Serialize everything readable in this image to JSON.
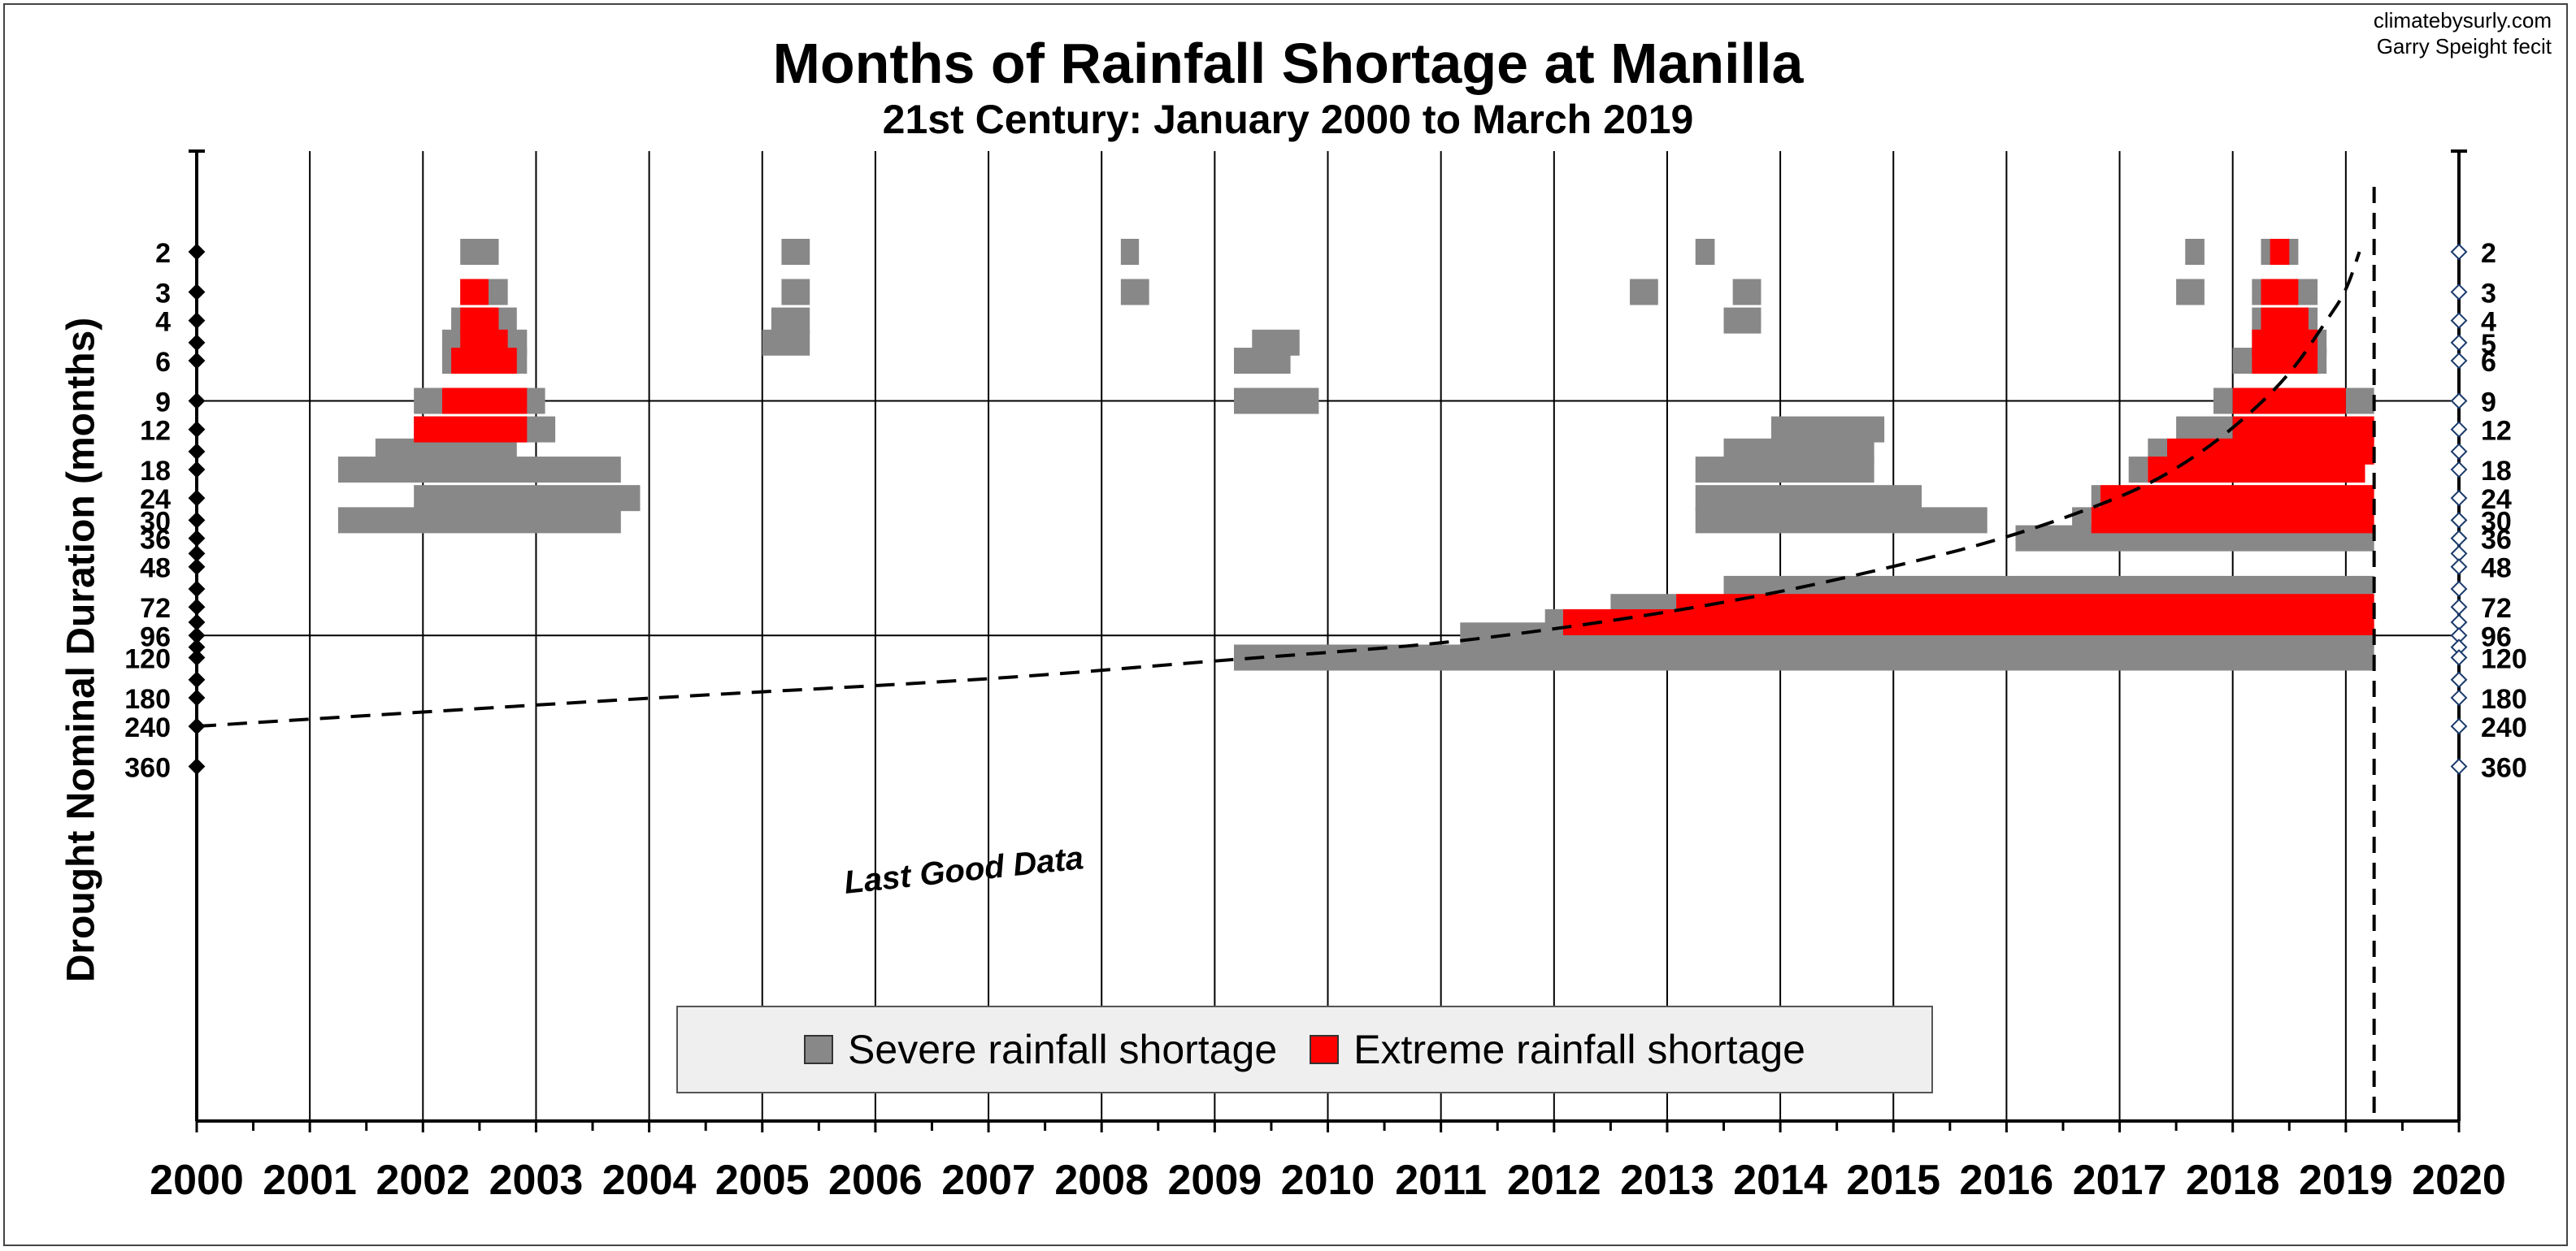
{
  "title": "Months of Rainfall Shortage at Manilla",
  "subtitle": "21st Century: January 2000 to March 2019",
  "credit_line1": "climatebysurly.com",
  "credit_line2": "Garry Speight fecit",
  "colors": {
    "severe": "#888888",
    "extreme": "#ff0000"
  },
  "chart_data": {
    "type": "bar",
    "orientation": "horizontal-range",
    "x_axis": {
      "min": 2000,
      "max": 2020,
      "ticks": [
        2000,
        2001,
        2002,
        2003,
        2004,
        2005,
        2006,
        2007,
        2008,
        2009,
        2010,
        2011,
        2012,
        2013,
        2014,
        2015,
        2016,
        2017,
        2018,
        2019,
        2020
      ]
    },
    "y_axis": {
      "label": "Drought Nominal Duration (months)",
      "scale": "log",
      "tick_labels": [
        2,
        3,
        4,
        5,
        6,
        9,
        12,
        18,
        24,
        30,
        36,
        48,
        72,
        96,
        120,
        180,
        240,
        360
      ],
      "left_labels": [
        "2",
        "3",
        "4",
        "",
        "6",
        "9",
        "12",
        "18",
        "24",
        "30",
        "36",
        "48",
        "72",
        "96",
        "120",
        "180",
        "240",
        "360"
      ],
      "right_labels": [
        "2",
        "3",
        "4",
        "5",
        "6",
        "9",
        "12",
        "18",
        "24",
        "30",
        "36",
        "48",
        "72",
        "96",
        "120",
        "180",
        "240",
        "360"
      ],
      "left_marker_values": [
        2,
        3,
        4,
        5,
        6,
        9,
        12,
        15,
        18,
        24,
        30,
        36,
        42,
        48,
        60,
        72,
        84,
        96,
        108,
        120,
        150,
        180,
        240,
        360
      ],
      "right_marker_values": [
        2,
        3,
        4,
        5,
        6,
        9,
        12,
        15,
        18,
        24,
        30,
        36,
        42,
        48,
        60,
        72,
        84,
        96,
        108,
        120,
        150,
        180,
        240,
        360
      ],
      "gridlines_at": [
        9,
        96
      ]
    },
    "legend": [
      {
        "name": "Severe rainfall shortage",
        "color": "#888888"
      },
      {
        "name": "Extreme rainfall shortage",
        "color": "#ff0000"
      }
    ],
    "legend_position": "bottom-center",
    "series": [
      {
        "name": "Severe rainfall shortage",
        "bars": [
          {
            "duration": 2,
            "start": 2002.33,
            "end": 2002.67
          },
          {
            "duration": 3,
            "start": 2002.33,
            "end": 2002.75
          },
          {
            "duration": 4,
            "start": 2002.25,
            "end": 2002.83
          },
          {
            "duration": 5,
            "start": 2002.17,
            "end": 2002.92
          },
          {
            "duration": 6,
            "start": 2002.17,
            "end": 2002.92
          },
          {
            "duration": 9,
            "start": 2001.92,
            "end": 2003.08
          },
          {
            "duration": 12,
            "start": 2001.92,
            "end": 2003.17
          },
          {
            "duration": 15,
            "start": 2001.58,
            "end": 2002.83
          },
          {
            "duration": 18,
            "start": 2001.25,
            "end": 2003.75
          },
          {
            "duration": 24,
            "start": 2001.92,
            "end": 2003.92
          },
          {
            "duration": 30,
            "start": 2001.25,
            "end": 2003.75
          },
          {
            "duration": 2,
            "start": 2005.17,
            "end": 2005.42
          },
          {
            "duration": 3,
            "start": 2005.17,
            "end": 2005.42
          },
          {
            "duration": 4,
            "start": 2005.08,
            "end": 2005.42
          },
          {
            "duration": 5,
            "start": 2005.0,
            "end": 2005.42
          },
          {
            "duration": 2,
            "start": 2008.17,
            "end": 2008.33
          },
          {
            "duration": 3,
            "start": 2008.17,
            "end": 2008.42
          },
          {
            "duration": 5,
            "start": 2009.33,
            "end": 2009.75
          },
          {
            "duration": 6,
            "start": 2009.17,
            "end": 2009.67
          },
          {
            "duration": 9,
            "start": 2009.17,
            "end": 2009.92
          },
          {
            "duration": 120,
            "start": 2009.17,
            "end": 2019.25
          },
          {
            "duration": 96,
            "start": 2011.17,
            "end": 2019.25
          },
          {
            "duration": 84,
            "start": 2011.92,
            "end": 2012.08
          },
          {
            "duration": 72,
            "start": 2012.5,
            "end": 2013.08
          },
          {
            "duration": 60,
            "start": 2013.5,
            "end": 2019.25
          },
          {
            "duration": 2,
            "start": 2013.25,
            "end": 2013.42
          },
          {
            "duration": 3,
            "start": 2012.67,
            "end": 2012.92
          },
          {
            "duration": 3,
            "start": 2013.58,
            "end": 2013.83
          },
          {
            "duration": 4,
            "start": 2013.5,
            "end": 2013.83
          },
          {
            "duration": 12,
            "start": 2013.92,
            "end": 2014.92
          },
          {
            "duration": 15,
            "start": 2013.5,
            "end": 2014.83
          },
          {
            "duration": 18,
            "start": 2013.25,
            "end": 2014.83
          },
          {
            "duration": 24,
            "start": 2013.25,
            "end": 2015.25
          },
          {
            "duration": 30,
            "start": 2013.25,
            "end": 2015.83
          },
          {
            "duration": 36,
            "start": 2016.08,
            "end": 2019.25
          },
          {
            "duration": 30,
            "start": 2016.58,
            "end": 2016.75
          },
          {
            "duration": 24,
            "start": 2016.75,
            "end": 2016.83
          },
          {
            "duration": 18,
            "start": 2017.08,
            "end": 2017.25
          },
          {
            "duration": 15,
            "start": 2017.25,
            "end": 2017.42
          },
          {
            "duration": 12,
            "start": 2017.5,
            "end": 2018.0
          },
          {
            "duration": 2,
            "start": 2017.58,
            "end": 2017.75
          },
          {
            "duration": 3,
            "start": 2017.5,
            "end": 2017.75
          },
          {
            "duration": 9,
            "start": 2017.83,
            "end": 2018.0
          },
          {
            "duration": 9,
            "start": 2019.0,
            "end": 2019.25
          },
          {
            "duration": 6,
            "start": 2018.0,
            "end": 2018.83
          },
          {
            "duration": 5,
            "start": 2018.17,
            "end": 2018.83
          },
          {
            "duration": 4,
            "start": 2018.17,
            "end": 2018.75
          },
          {
            "duration": 3,
            "start": 2018.17,
            "end": 2018.75
          },
          {
            "duration": 2,
            "start": 2018.25,
            "end": 2018.58
          }
        ]
      },
      {
        "name": "Extreme rainfall shortage",
        "bars": [
          {
            "duration": 3,
            "start": 2002.33,
            "end": 2002.58
          },
          {
            "duration": 4,
            "start": 2002.33,
            "end": 2002.67
          },
          {
            "duration": 5,
            "start": 2002.33,
            "end": 2002.75
          },
          {
            "duration": 6,
            "start": 2002.25,
            "end": 2002.83
          },
          {
            "duration": 9,
            "start": 2002.17,
            "end": 2002.92
          },
          {
            "duration": 12,
            "start": 2001.92,
            "end": 2002.92
          },
          {
            "duration": 84,
            "start": 2012.08,
            "end": 2019.25
          },
          {
            "duration": 72,
            "start": 2013.08,
            "end": 2019.25
          },
          {
            "duration": 30,
            "start": 2016.75,
            "end": 2019.25
          },
          {
            "duration": 24,
            "start": 2016.83,
            "end": 2019.25
          },
          {
            "duration": 18,
            "start": 2017.25,
            "end": 2019.17
          },
          {
            "duration": 15,
            "start": 2017.42,
            "end": 2019.25
          },
          {
            "duration": 12,
            "start": 2018.0,
            "end": 2019.25
          },
          {
            "duration": 9,
            "start": 2018.0,
            "end": 2019.0
          },
          {
            "duration": 6,
            "start": 2018.17,
            "end": 2018.75
          },
          {
            "duration": 5,
            "start": 2018.17,
            "end": 2018.75
          },
          {
            "duration": 4,
            "start": 2018.25,
            "end": 2018.67
          },
          {
            "duration": 3,
            "start": 2018.25,
            "end": 2018.58
          },
          {
            "duration": 2,
            "start": 2018.33,
            "end": 2018.5
          }
        ]
      }
    ],
    "annotations": [
      {
        "text": "Last Good Data",
        "type": "dashed-curve"
      }
    ],
    "last_good_data_curve": [
      [
        2000.0,
        240
      ],
      [
        2004.0,
        180
      ],
      [
        2007.0,
        150
      ],
      [
        2009.0,
        124
      ],
      [
        2010.0,
        114
      ],
      [
        2011.0,
        104
      ],
      [
        2012.0,
        90
      ],
      [
        2013.0,
        76
      ],
      [
        2014.0,
        62
      ],
      [
        2015.0,
        48
      ],
      [
        2016.0,
        36
      ],
      [
        2017.0,
        24
      ],
      [
        2017.5,
        18
      ],
      [
        2018.0,
        12
      ],
      [
        2018.5,
        7
      ],
      [
        2018.83,
        4
      ],
      [
        2019.0,
        3
      ],
      [
        2019.12,
        2
      ]
    ],
    "data_end": 2019.25
  }
}
